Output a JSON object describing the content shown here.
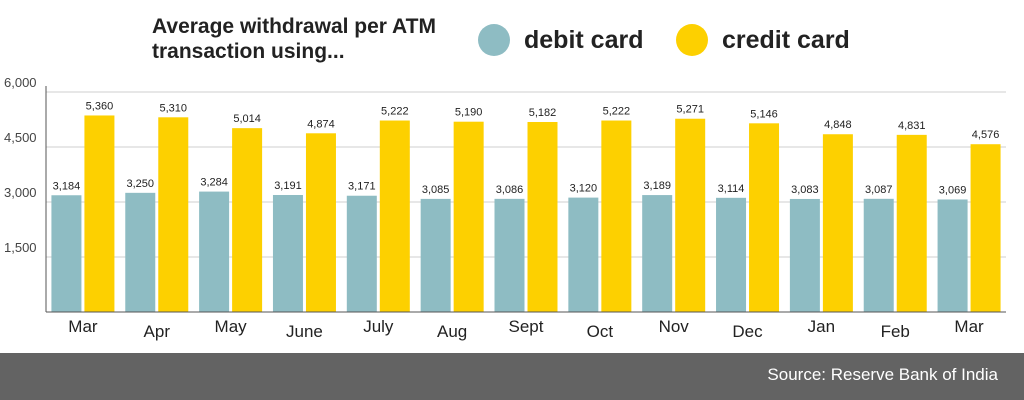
{
  "chart_data": {
    "type": "bar",
    "title": "Average withdrawal per ATM transaction using...",
    "xlabel": "",
    "ylabel": "",
    "categories": [
      "Mar",
      "Apr",
      "May",
      "June",
      "July",
      "Aug",
      "Sept",
      "Oct",
      "Nov",
      "Dec",
      "Jan",
      "Feb",
      "Mar"
    ],
    "series": [
      {
        "name": "debit card",
        "color": "#8ebcc3",
        "values": [
          3184,
          3250,
          3284,
          3191,
          3171,
          3085,
          3086,
          3120,
          3189,
          3114,
          3083,
          3087,
          3069
        ]
      },
      {
        "name": "credit card",
        "color": "#fdd000",
        "values": [
          5360,
          5310,
          5014,
          4874,
          5222,
          5190,
          5182,
          5222,
          5271,
          5146,
          4848,
          4831,
          4576
        ]
      }
    ],
    "value_labels": {
      "debit card": [
        "3,184",
        "3,250",
        "3,284",
        "3,191",
        "3,171",
        "3,085",
        "3,086",
        "3,120",
        "3,189",
        "3,114",
        "3,083",
        "3,087",
        "3,069"
      ],
      "credit card": [
        "5,360",
        "5,310",
        "5,014",
        "4,874",
        "5,222",
        "5,190",
        "5,182",
        "5,222",
        "5,271",
        "5,146",
        "4,848",
        "4,831",
        "4,576"
      ]
    },
    "ylim": [
      0,
      6000
    ],
    "yticks": [
      1500,
      3000,
      4500,
      6000
    ],
    "ytick_labels": [
      "1,500",
      "3,000",
      "4,500",
      "6,000"
    ],
    "grid": true,
    "legend_position": "top-right"
  },
  "source": "Source: Reserve Bank of India"
}
